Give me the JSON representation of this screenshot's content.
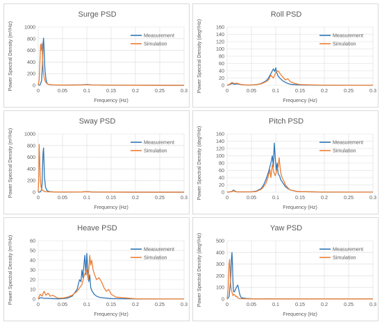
{
  "colors": {
    "measurement": "#2e75b6",
    "simulation": "#ed7d31",
    "grid": "#d9d9d9",
    "text": "#595959"
  },
  "chart_data": [
    {
      "type": "line",
      "title": "Surge PSD",
      "xlabel": "Frequency (Hz)",
      "ylabel": "Power Spectral Density (m²/Hz)",
      "xlim": [
        0,
        0.3
      ],
      "ylim": [
        0,
        1000
      ],
      "xticks": [
        "0",
        "0.05",
        "0.1",
        "0.15",
        "0.2",
        "0.25",
        "0.3"
      ],
      "yticks": [
        "0",
        "200",
        "400",
        "600",
        "800",
        "1000"
      ],
      "legend": "top-right",
      "series": [
        {
          "name": "Measurement",
          "x": [
            0,
            0.004,
            0.007,
            0.009,
            0.01,
            0.011,
            0.012,
            0.013,
            0.014,
            0.016,
            0.018,
            0.02,
            0.025,
            0.03,
            0.05,
            0.09,
            0.1,
            0.11,
            0.15,
            0.2,
            0.25,
            0.3
          ],
          "y": [
            0,
            10,
            80,
            400,
            720,
            810,
            650,
            420,
            250,
            100,
            40,
            20,
            10,
            6,
            4,
            8,
            15,
            7,
            4,
            2,
            1,
            1
          ]
        },
        {
          "name": "Simulation",
          "x": [
            0,
            0.002,
            0.004,
            0.005,
            0.006,
            0.007,
            0.008,
            0.009,
            0.01,
            0.011,
            0.013,
            0.015,
            0.018,
            0.022,
            0.03,
            0.05,
            0.09,
            0.1,
            0.11,
            0.15,
            0.2,
            0.25,
            0.3
          ],
          "y": [
            0,
            100,
            500,
            700,
            600,
            720,
            650,
            480,
            300,
            190,
            100,
            60,
            30,
            15,
            8,
            5,
            6,
            12,
            6,
            3,
            2,
            1,
            1
          ]
        }
      ]
    },
    {
      "type": "line",
      "title": "Roll PSD",
      "xlabel": "Frequency (Hz)",
      "ylabel": "Power Spectral Density (deg²/Hz)",
      "xlim": [
        0,
        0.3
      ],
      "ylim": [
        0,
        160
      ],
      "xticks": [
        "0",
        "0.05",
        "0.1",
        "0.15",
        "0.2",
        "0.25",
        "0.3"
      ],
      "yticks": [
        "0",
        "20",
        "40",
        "60",
        "80",
        "100",
        "120",
        "140",
        "160"
      ],
      "legend": "top-right",
      "series": [
        {
          "name": "Measurement",
          "x": [
            0,
            0.005,
            0.01,
            0.015,
            0.02,
            0.03,
            0.04,
            0.05,
            0.06,
            0.07,
            0.08,
            0.085,
            0.09,
            0.095,
            0.098,
            0.1,
            0.102,
            0.105,
            0.11,
            0.115,
            0.12,
            0.125,
            0.13,
            0.14,
            0.15,
            0.2,
            0.25,
            0.3
          ],
          "y": [
            0,
            2,
            5,
            3,
            4,
            2,
            1,
            1,
            2,
            5,
            12,
            20,
            32,
            45,
            38,
            48,
            35,
            25,
            18,
            12,
            8,
            5,
            3,
            2,
            1,
            0.5,
            0.3,
            0.2
          ]
        },
        {
          "name": "Simulation",
          "x": [
            0,
            0.005,
            0.01,
            0.015,
            0.02,
            0.03,
            0.04,
            0.05,
            0.06,
            0.07,
            0.08,
            0.085,
            0.09,
            0.095,
            0.1,
            0.105,
            0.11,
            0.115,
            0.12,
            0.125,
            0.13,
            0.14,
            0.15,
            0.2,
            0.25,
            0.3
          ],
          "y": [
            0,
            3,
            8,
            5,
            6,
            2,
            1,
            1,
            2,
            4,
            10,
            15,
            28,
            20,
            35,
            40,
            30,
            22,
            15,
            18,
            10,
            5,
            2,
            0.5,
            0.3,
            0.2
          ]
        }
      ]
    },
    {
      "type": "line",
      "title": "Sway PSD",
      "xlabel": "Frequency (Hz)",
      "ylabel": "Power Spectral Density (m²/Hz)",
      "xlim": [
        0,
        0.3
      ],
      "ylim": [
        0,
        1000
      ],
      "xticks": [
        "0",
        "0.05",
        "0.1",
        "0.15",
        "0.2",
        "0.25",
        "0.3"
      ],
      "yticks": [
        "0",
        "200",
        "400",
        "600",
        "800",
        "1000"
      ],
      "legend": "top-right",
      "series": [
        {
          "name": "Measurement",
          "x": [
            0,
            0.004,
            0.007,
            0.008,
            0.009,
            0.01,
            0.011,
            0.012,
            0.013,
            0.015,
            0.018,
            0.022,
            0.03,
            0.05,
            0.09,
            0.1,
            0.11,
            0.15,
            0.2,
            0.25,
            0.3
          ],
          "y": [
            0,
            5,
            40,
            150,
            450,
            680,
            760,
            500,
            250,
            90,
            30,
            12,
            6,
            3,
            6,
            10,
            5,
            2,
            1,
            1,
            1
          ]
        },
        {
          "name": "Simulation",
          "x": [
            0,
            0.001,
            0.002,
            0.003,
            0.004,
            0.005,
            0.006,
            0.008,
            0.01,
            0.013,
            0.016,
            0.02,
            0.03,
            0.05,
            0.09,
            0.1,
            0.11,
            0.15,
            0.2,
            0.25,
            0.3
          ],
          "y": [
            0,
            200,
            820,
            600,
            300,
            150,
            80,
            40,
            25,
            15,
            10,
            7,
            5,
            3,
            5,
            8,
            4,
            2,
            1,
            1,
            1
          ]
        }
      ]
    },
    {
      "type": "line",
      "title": "Pitch PSD",
      "xlabel": "Frequency (Hz)",
      "ylabel": "Power Spectral Density (deg²/Hz)",
      "xlim": [
        0,
        0.3
      ],
      "ylim": [
        0,
        160
      ],
      "xticks": [
        "0",
        "0.05",
        "0.1",
        "0.15",
        "0.2",
        "0.25",
        "0.3"
      ],
      "yticks": [
        "0",
        "20",
        "40",
        "60",
        "80",
        "100",
        "120",
        "140",
        "160"
      ],
      "legend": "top-right",
      "series": [
        {
          "name": "Measurement",
          "x": [
            0,
            0.005,
            0.01,
            0.013,
            0.016,
            0.02,
            0.03,
            0.05,
            0.06,
            0.07,
            0.075,
            0.08,
            0.085,
            0.09,
            0.093,
            0.095,
            0.097,
            0.099,
            0.101,
            0.103,
            0.105,
            0.108,
            0.11,
            0.115,
            0.12,
            0.125,
            0.13,
            0.14,
            0.15,
            0.2,
            0.25,
            0.3
          ],
          "y": [
            0,
            1,
            2,
            6,
            3,
            1,
            1,
            1,
            3,
            10,
            20,
            35,
            55,
            80,
            100,
            70,
            135,
            95,
            60,
            80,
            50,
            45,
            35,
            25,
            15,
            10,
            6,
            3,
            1.5,
            0.5,
            0.3,
            0.2
          ]
        },
        {
          "name": "Simulation",
          "x": [
            0,
            0.005,
            0.01,
            0.013,
            0.016,
            0.02,
            0.03,
            0.05,
            0.06,
            0.07,
            0.075,
            0.08,
            0.085,
            0.088,
            0.09,
            0.093,
            0.096,
            0.099,
            0.102,
            0.105,
            0.107,
            0.11,
            0.113,
            0.117,
            0.12,
            0.125,
            0.13,
            0.14,
            0.15,
            0.2,
            0.25,
            0.3
          ],
          "y": [
            0,
            1,
            1.5,
            4,
            2,
            1,
            1,
            1,
            2,
            8,
            15,
            25,
            45,
            62,
            40,
            75,
            55,
            45,
            60,
            70,
            95,
            55,
            40,
            30,
            20,
            12,
            6,
            3,
            1.5,
            0.5,
            0.3,
            0.2
          ]
        }
      ]
    },
    {
      "type": "line",
      "title": "Heave PSD",
      "xlabel": "Frequency (Hz)",
      "ylabel": "Power Spectral Density (m²/Hz)",
      "xlim": [
        0,
        0.3
      ],
      "ylim": [
        0,
        60
      ],
      "xticks": [
        "0",
        "0.05",
        "0.1",
        "0.15",
        "0.2",
        "0.25",
        "0.3"
      ],
      "yticks": [
        "0",
        "10",
        "20",
        "30",
        "40",
        "50",
        "60"
      ],
      "legend": "top-right",
      "series": [
        {
          "name": "Measurement",
          "x": [
            0,
            0.005,
            0.01,
            0.02,
            0.03,
            0.04,
            0.05,
            0.06,
            0.07,
            0.08,
            0.085,
            0.088,
            0.09,
            0.092,
            0.094,
            0.096,
            0.098,
            0.1,
            0.102,
            0.104,
            0.106,
            0.108,
            0.11,
            0.115,
            0.12,
            0.125,
            0.13,
            0.14,
            0.15,
            0.2,
            0.25,
            0.3
          ],
          "y": [
            0,
            1.5,
            1,
            0.8,
            0.5,
            0.3,
            0.5,
            1,
            3,
            10,
            20,
            18,
            30,
            22,
            35,
            45,
            25,
            47,
            30,
            18,
            25,
            12,
            9,
            5,
            3,
            2,
            1.5,
            1,
            0.5,
            0.2,
            0.1,
            0.1
          ]
        },
        {
          "name": "Simulation",
          "x": [
            0,
            0.004,
            0.008,
            0.012,
            0.016,
            0.02,
            0.025,
            0.03,
            0.04,
            0.05,
            0.06,
            0.07,
            0.08,
            0.09,
            0.095,
            0.1,
            0.103,
            0.106,
            0.108,
            0.11,
            0.113,
            0.116,
            0.12,
            0.125,
            0.13,
            0.135,
            0.14,
            0.145,
            0.15,
            0.16,
            0.2,
            0.25,
            0.3
          ],
          "y": [
            0,
            5,
            3,
            8,
            4,
            6,
            3,
            4,
            1,
            1,
            2,
            4,
            8,
            15,
            25,
            30,
            20,
            45,
            35,
            40,
            30,
            25,
            20,
            22,
            18,
            12,
            8,
            10,
            5,
            2,
            0.3,
            0.1,
            0.1
          ]
        }
      ]
    },
    {
      "type": "line",
      "title": "Yaw PSD",
      "xlabel": "Frequency (Hz)",
      "ylabel": "Power Spectral Density (deg²/Hz)",
      "xlim": [
        0,
        0.3
      ],
      "ylim": [
        0,
        500
      ],
      "xticks": [
        "0",
        "0.05",
        "0.1",
        "0.15",
        "0.2",
        "0.25",
        "0.3"
      ],
      "yticks": [
        "0",
        "100",
        "200",
        "300",
        "400",
        "500"
      ],
      "legend": "top-right",
      "series": [
        {
          "name": "Measurement",
          "x": [
            0,
            0.004,
            0.007,
            0.009,
            0.01,
            0.011,
            0.012,
            0.013,
            0.014,
            0.016,
            0.018,
            0.02,
            0.022,
            0.024,
            0.026,
            0.028,
            0.03,
            0.04,
            0.05,
            0.1,
            0.15,
            0.2,
            0.25,
            0.3
          ],
          "y": [
            0,
            20,
            150,
            350,
            400,
            300,
            150,
            80,
            60,
            70,
            90,
            110,
            120,
            80,
            40,
            20,
            10,
            5,
            3,
            2,
            1,
            1,
            1,
            1
          ]
        },
        {
          "name": "Simulation",
          "x": [
            0,
            0.002,
            0.004,
            0.005,
            0.006,
            0.007,
            0.008,
            0.01,
            0.012,
            0.014,
            0.016,
            0.018,
            0.02,
            0.022,
            0.025,
            0.03,
            0.04,
            0.05,
            0.1,
            0.15,
            0.2,
            0.25,
            0.3
          ],
          "y": [
            0,
            80,
            300,
            340,
            250,
            150,
            100,
            60,
            30,
            40,
            35,
            20,
            25,
            10,
            5,
            3,
            2,
            1,
            1,
            1,
            1,
            1,
            1
          ]
        }
      ]
    }
  ]
}
